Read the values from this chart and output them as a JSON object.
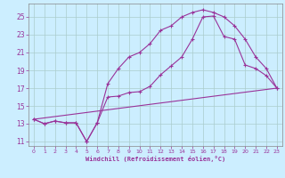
{
  "xlabel": "Windchill (Refroidissement éolien,°C)",
  "background_color": "#cceeff",
  "grid_color": "#aacccc",
  "line_color": "#993399",
  "xlim": [
    -0.5,
    23.5
  ],
  "ylim": [
    10.5,
    26.5
  ],
  "xticks": [
    0,
    1,
    2,
    3,
    4,
    5,
    6,
    7,
    8,
    9,
    10,
    11,
    12,
    13,
    14,
    15,
    16,
    17,
    18,
    19,
    20,
    21,
    22,
    23
  ],
  "yticks": [
    11,
    13,
    15,
    17,
    19,
    21,
    23,
    25
  ],
  "line1_x": [
    0,
    1,
    2,
    3,
    4,
    5,
    6,
    7,
    8,
    9,
    10,
    11,
    12,
    13,
    14,
    15,
    16,
    17,
    18,
    19,
    20,
    21,
    22,
    23
  ],
  "line1_y": [
    13.5,
    13.0,
    13.3,
    13.1,
    13.1,
    11.0,
    13.1,
    16.0,
    16.1,
    16.5,
    16.6,
    17.2,
    18.5,
    19.5,
    20.5,
    22.5,
    25.0,
    25.1,
    22.8,
    22.5,
    19.6,
    19.2,
    18.4,
    17.0
  ],
  "line2_x": [
    0,
    1,
    2,
    3,
    4,
    5,
    6,
    7,
    8,
    9,
    10,
    11,
    12,
    13,
    14,
    15,
    16,
    17,
    18,
    19,
    20,
    21,
    22,
    23
  ],
  "line2_y": [
    13.5,
    13.0,
    13.3,
    13.1,
    13.1,
    11.0,
    13.1,
    17.5,
    19.2,
    20.5,
    21.0,
    22.0,
    23.5,
    24.0,
    25.0,
    25.5,
    25.8,
    25.5,
    25.0,
    24.0,
    22.5,
    20.5,
    19.2,
    17.0
  ],
  "line3_x": [
    0,
    23
  ],
  "line3_y": [
    13.5,
    17.0
  ]
}
